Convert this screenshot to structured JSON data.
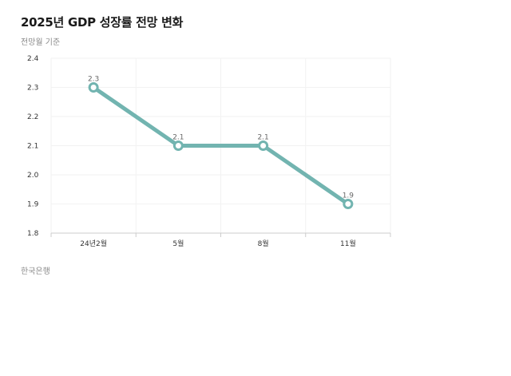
{
  "chart_data": {
    "type": "line",
    "title": "2025년 GDP 성장률 전망 변화",
    "subtitle": "전망월 기준",
    "source": "한국은행",
    "categories": [
      "24년2월",
      "5월",
      "8월",
      "11월"
    ],
    "series": [
      {
        "values": [
          2.3,
          2.1,
          2.1,
          1.9
        ],
        "data_labels": [
          "2.3",
          "2.1",
          "2.1",
          "1.9"
        ],
        "color": "#72b4b0"
      }
    ],
    "ylim": [
      1.8,
      2.4
    ],
    "yticks": [
      1.8,
      1.9,
      2.0,
      2.1,
      2.2,
      2.3,
      2.4
    ],
    "ytick_labels": [
      "1.8",
      "1.9",
      "2.0",
      "2.1",
      "2.2",
      "2.3",
      "2.4"
    ],
    "grid": true,
    "legend": "none",
    "grid_color": "#f2f2f2",
    "axis_color": "#cccccc"
  }
}
